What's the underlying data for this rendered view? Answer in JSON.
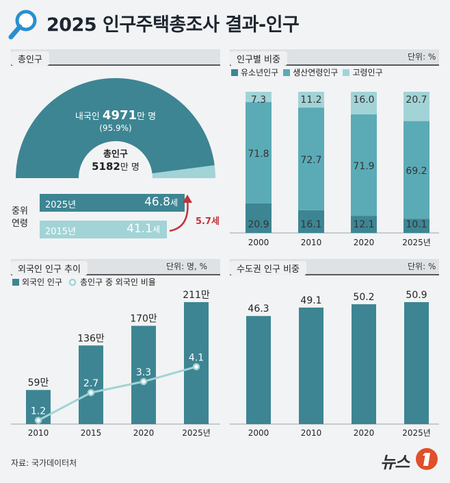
{
  "title": "2025 인구주택총조사 결과-인구",
  "colors": {
    "teal_dark": "#3d8593",
    "teal_mid": "#5aabb6",
    "teal_light": "#a2d3d7",
    "red": "#c0343c",
    "bg": "#f2f3f4"
  },
  "icons": {
    "header": "search-icon",
    "brand": "news1-logo"
  },
  "sections": {
    "total": {
      "label": "총인구"
    },
    "share": {
      "label": "인구별 비중",
      "unit": "단위: %"
    },
    "foreign": {
      "label": "외국인 인구 추이",
      "unit": "단위: 명, %"
    },
    "capital": {
      "label": "수도권 인구 비중",
      "unit": "단위: %"
    }
  },
  "total_pop": {
    "domestic_label": "내국인",
    "domestic_value": "4971",
    "domestic_unit": "만 명",
    "domestic_pct": "(95.9%)",
    "domestic_share": 95.9,
    "total_label": "총인구",
    "total_value": "5182",
    "total_unit": "만 명"
  },
  "median_age": {
    "label_1": "중위",
    "label_2": "연령",
    "rows": [
      {
        "year": "2025년",
        "value": "46.8",
        "unit": "세"
      },
      {
        "year": "2015년",
        "value": "41.1",
        "unit": "세"
      }
    ],
    "diff": "5.7세"
  },
  "chart_data": [
    {
      "type": "bar",
      "stacked": true,
      "title": "인구별 비중",
      "unit": "단위: %",
      "categories": [
        "2000",
        "2010",
        "2020",
        "2025년"
      ],
      "series": [
        {
          "name": "유소년인구",
          "values": [
            20.9,
            16.1,
            12.1,
            10.1
          ],
          "color": "#3d8593"
        },
        {
          "name": "생산연령인구",
          "values": [
            71.8,
            72.7,
            71.9,
            69.2
          ],
          "color": "#5aabb6"
        },
        {
          "name": "고령인구",
          "values": [
            7.3,
            11.2,
            16.0,
            20.7
          ],
          "color": "#a2d3d7"
        }
      ],
      "ylim": [
        0,
        100
      ],
      "legend": "top-left"
    },
    {
      "type": "bar",
      "title": "외국인 인구 추이",
      "unit": "단위: 명, %",
      "categories": [
        "2010",
        "2015",
        "2020",
        "2025년"
      ],
      "series": [
        {
          "name": "외국인 인구",
          "values": [
            59,
            136,
            170,
            211
          ],
          "value_unit": "만",
          "color": "#3d8593"
        },
        {
          "name": "총인구 중 외국인 비율",
          "type": "line",
          "values": [
            1.2,
            2.7,
            3.3,
            4.1
          ],
          "color": "#a2d3d7"
        }
      ],
      "legend": "top-left"
    },
    {
      "type": "bar",
      "title": "수도권 인구 비중",
      "unit": "단위: %",
      "categories": [
        "2000",
        "2010",
        "2020",
        "2025년"
      ],
      "values": [
        46.3,
        49.1,
        50.2,
        50.9
      ],
      "color": "#3d8593"
    }
  ],
  "source": "자료: 국가데이터처",
  "brand": "뉴스"
}
